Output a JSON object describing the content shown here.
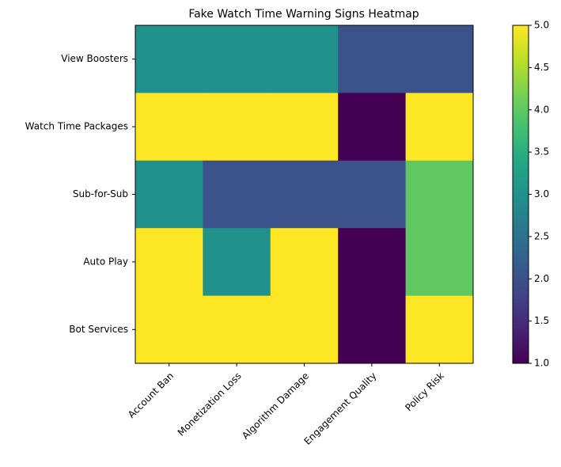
{
  "chart_data": {
    "type": "heatmap",
    "title": "Fake Watch Time Warning Signs Heatmap",
    "x_categories": [
      "Account Ban",
      "Monetization Loss",
      "Algorithm Damage",
      "Engagement Quality",
      "Policy Risk"
    ],
    "y_categories": [
      "View Boosters",
      "Watch Time Packages",
      "Sub-for-Sub",
      "Auto Play",
      "Bot Services"
    ],
    "values": [
      [
        3,
        3,
        3,
        2,
        2
      ],
      [
        5,
        5,
        5,
        1,
        5
      ],
      [
        3,
        2,
        2,
        2,
        4
      ],
      [
        5,
        3,
        5,
        1,
        4
      ],
      [
        5,
        5,
        5,
        1,
        5
      ]
    ],
    "colormap": "viridis",
    "zlim": [
      1,
      5
    ],
    "zticks": [
      {
        "value": 1,
        "label": "1.0"
      },
      {
        "value": 1.5,
        "label": "1.5"
      },
      {
        "value": 2,
        "label": "2.0"
      },
      {
        "value": 2.5,
        "label": "2.5"
      },
      {
        "value": 3,
        "label": "3.0"
      },
      {
        "value": 3.5,
        "label": "3.5"
      },
      {
        "value": 4,
        "label": "4.0"
      },
      {
        "value": 4.5,
        "label": "4.5"
      },
      {
        "value": 5,
        "label": "5.0"
      }
    ]
  }
}
